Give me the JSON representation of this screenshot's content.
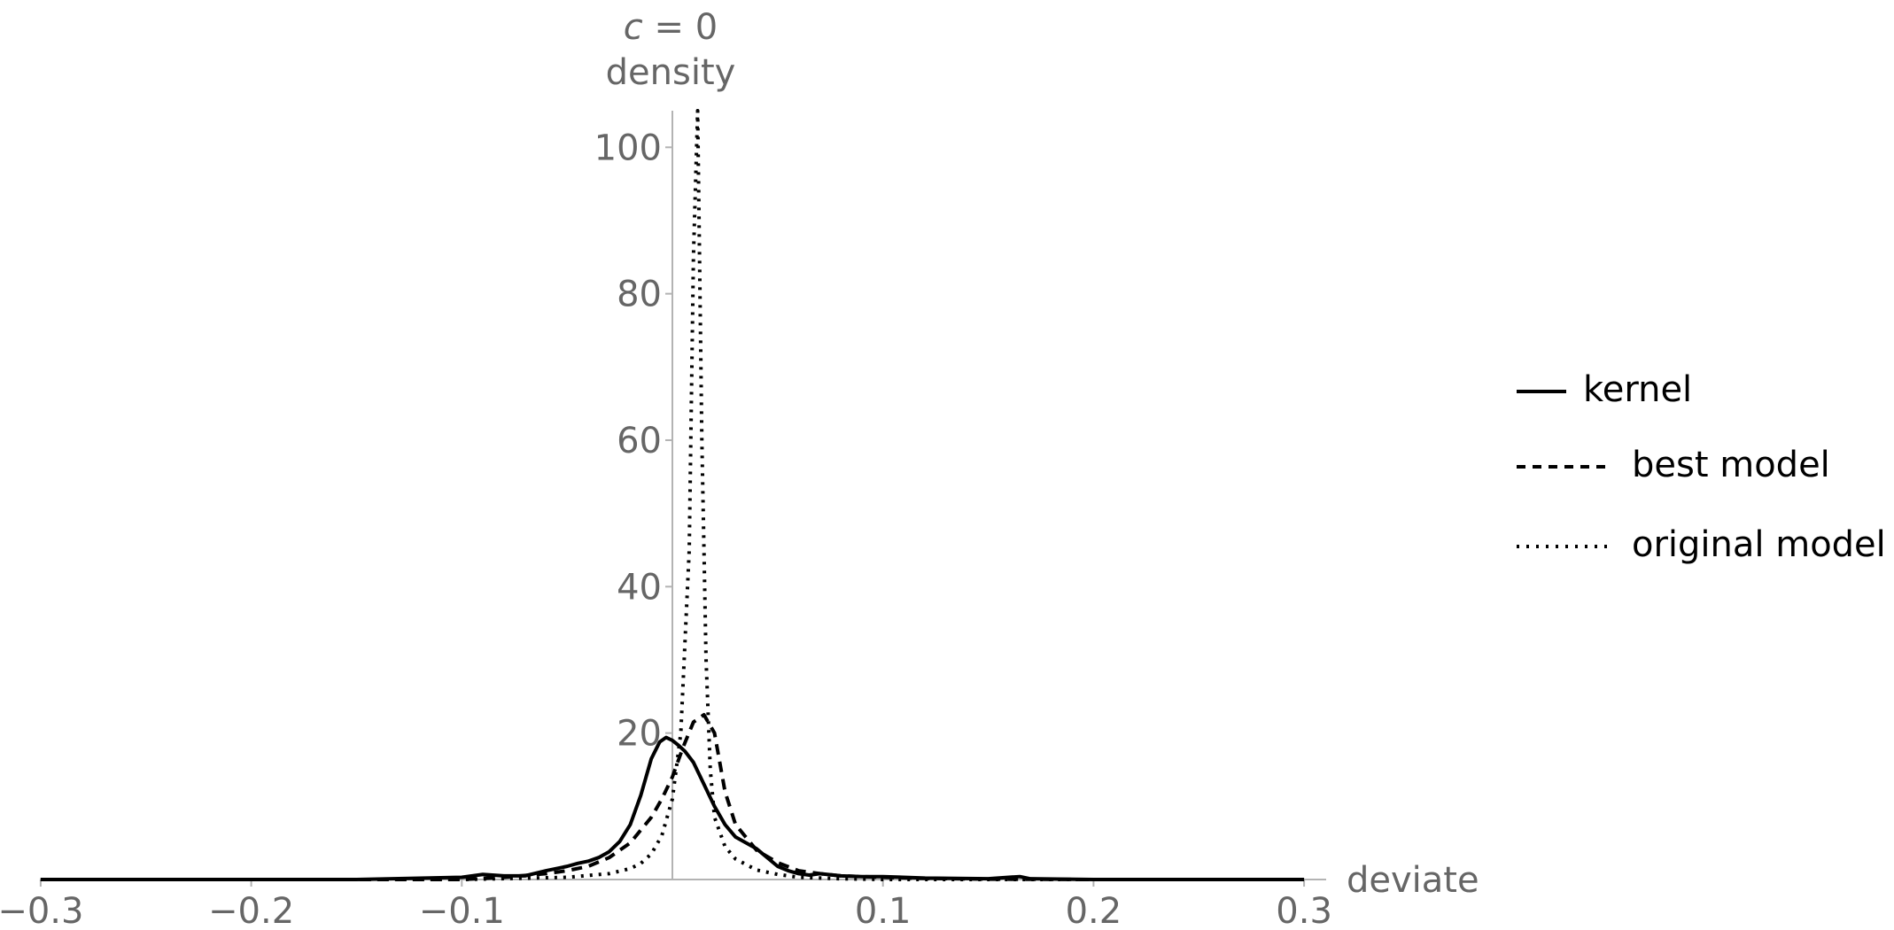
{
  "chart_data": {
    "type": "line",
    "title": {
      "var": "c",
      "rest": " = 0"
    },
    "xlabel": "deviate",
    "ylabel": "density",
    "xlim": [
      -0.3,
      0.3
    ],
    "ylim": [
      0,
      105
    ],
    "x_ticks": [
      {
        "value": -0.3,
        "label": "−0.3"
      },
      {
        "value": -0.2,
        "label": "−0.2"
      },
      {
        "value": -0.1,
        "label": "−0.1"
      },
      {
        "value": 0.1,
        "label": "0.1"
      },
      {
        "value": 0.2,
        "label": "0.2"
      },
      {
        "value": 0.3,
        "label": "0.3"
      }
    ],
    "y_ticks": [
      {
        "value": 20,
        "label": "20"
      },
      {
        "value": 40,
        "label": "40"
      },
      {
        "value": 60,
        "label": "60"
      },
      {
        "value": 80,
        "label": "80"
      },
      {
        "value": 100,
        "label": "100"
      }
    ],
    "legend_position": "right",
    "series": [
      {
        "name": "kernel",
        "style": "solid",
        "color": "#000000",
        "x": [
          -0.3,
          -0.2,
          -0.15,
          -0.1,
          -0.09,
          -0.08,
          -0.07,
          -0.06,
          -0.05,
          -0.045,
          -0.04,
          -0.035,
          -0.03,
          -0.025,
          -0.02,
          -0.015,
          -0.01,
          -0.006,
          -0.003,
          0.0,
          0.003,
          0.006,
          0.01,
          0.015,
          0.02,
          0.025,
          0.03,
          0.035,
          0.04,
          0.045,
          0.05,
          0.055,
          0.06,
          0.065,
          0.07,
          0.08,
          0.09,
          0.1,
          0.12,
          0.15,
          0.165,
          0.17,
          0.2,
          0.3
        ],
        "y": [
          0,
          0,
          0,
          0.3,
          0.7,
          0.5,
          0.5,
          1.2,
          1.8,
          2.2,
          2.5,
          3,
          3.8,
          5.2,
          7.5,
          11.5,
          16.5,
          18.8,
          19.4,
          19,
          18.3,
          17.5,
          16,
          13,
          10,
          7.5,
          5.8,
          5,
          4.2,
          3,
          1.8,
          1.2,
          0.8,
          0.6,
          0.8,
          0.5,
          0.4,
          0.4,
          0.2,
          0.1,
          0.4,
          0.1,
          0,
          0
        ]
      },
      {
        "name": "best model",
        "style": "dashed",
        "color": "#000000",
        "x": [
          -0.3,
          -0.2,
          -0.1,
          -0.08,
          -0.06,
          -0.05,
          -0.04,
          -0.03,
          -0.02,
          -0.01,
          -0.005,
          0.0,
          0.005,
          0.01,
          0.015,
          0.02,
          0.025,
          0.03,
          0.04,
          0.05,
          0.06,
          0.07,
          0.08,
          0.1,
          0.12,
          0.15,
          0.2,
          0.3
        ],
        "y": [
          0,
          0,
          0,
          0.3,
          0.8,
          1.2,
          1.8,
          3,
          5,
          8.5,
          11,
          14,
          18,
          21.5,
          22.5,
          20,
          12,
          7.5,
          4,
          2.3,
          1.2,
          0.8,
          0.5,
          0.3,
          0.15,
          0.05,
          0,
          0
        ]
      },
      {
        "name": "original model",
        "style": "dotted",
        "color": "#000000",
        "x": [
          -0.3,
          -0.1,
          -0.05,
          -0.03,
          -0.02,
          -0.015,
          -0.01,
          -0.005,
          0.0,
          0.004,
          0.008,
          0.01,
          0.012,
          0.014,
          0.016,
          0.018,
          0.02,
          0.025,
          0.03,
          0.04,
          0.05,
          0.06,
          0.08,
          0.1,
          0.3
        ],
        "y": [
          0,
          0,
          0.3,
          0.8,
          1.5,
          2.2,
          3.5,
          6,
          11,
          20,
          45,
          85,
          105,
          60,
          30,
          15,
          8.5,
          4.5,
          2.8,
          1.3,
          0.7,
          0.3,
          0.1,
          0,
          0
        ]
      }
    ]
  }
}
